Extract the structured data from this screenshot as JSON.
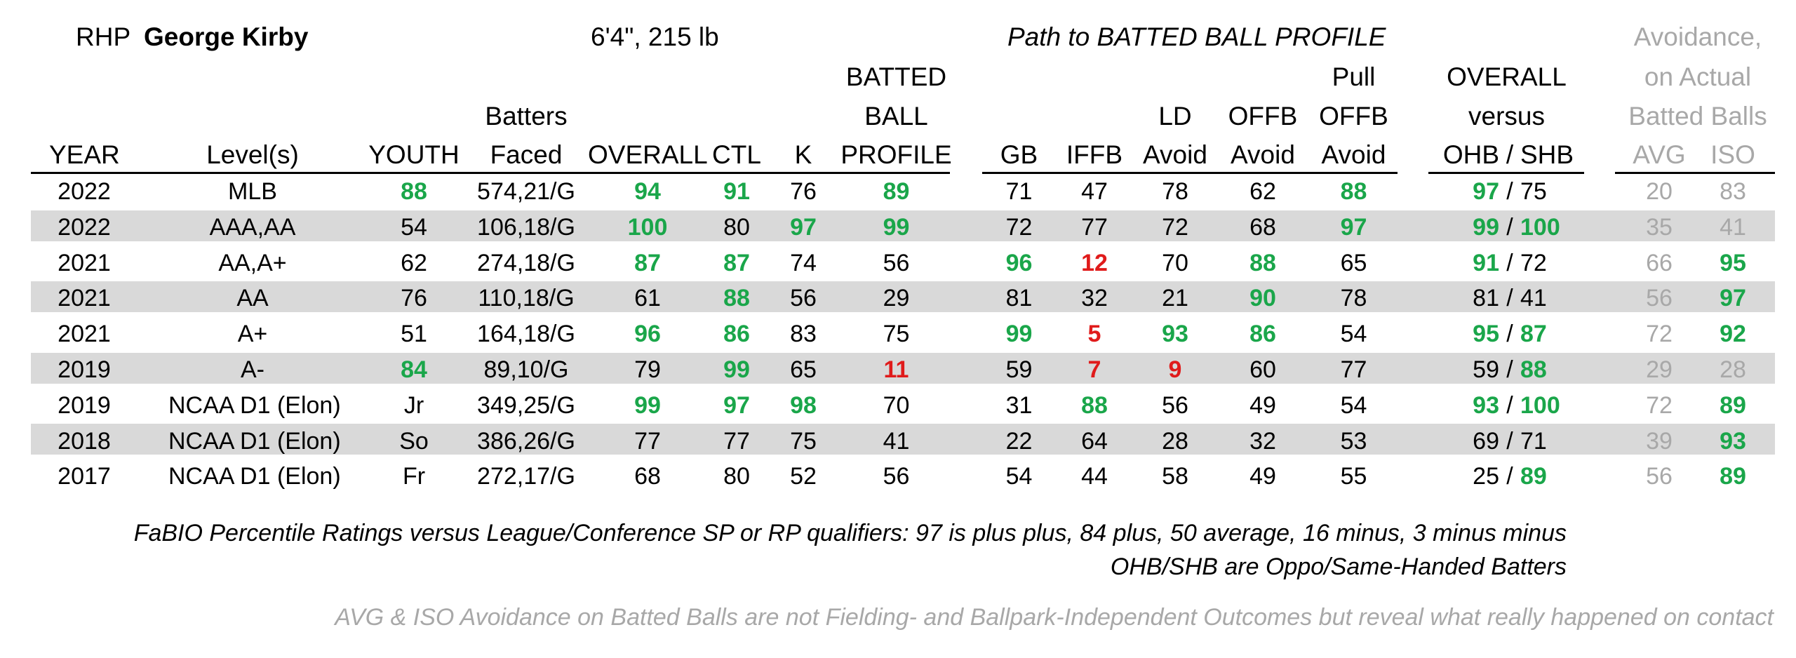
{
  "header": {
    "position": "RHP",
    "player_name": "George Kirby",
    "size": "6'4\", 215 lb",
    "path_title": "Path to BATTED BALL PROFILE",
    "avoid_title_1": "Avoidance,",
    "avoid_title_2": "on Actual",
    "avoid_title_3": "Batted Balls"
  },
  "columns": {
    "year": "YEAR",
    "levels": "Level(s)",
    "youth": "YOUTH",
    "bf_1": "Batters",
    "bf_2": "Faced",
    "overall": "OVERALL",
    "ctl": "CTL",
    "k": "K",
    "bbp_1": "BATTED",
    "bbp_2": "BALL",
    "bbp_3": "PROFILE",
    "gb": "GB",
    "iffb": "IFFB",
    "ld_1": "LD",
    "ld_2": "Avoid",
    "offb_1": "OFFB",
    "offb_2": "Avoid",
    "pull_1": "Pull",
    "pull_2": "OFFB",
    "pull_3": "Avoid",
    "ov_1": "OVERALL",
    "ov_2": "versus",
    "ohb": "OHB",
    "slash": "/",
    "shb": "SHB",
    "avg": "AVG",
    "iso": "ISO"
  },
  "colors": {
    "green": "#1aa64a",
    "red": "#e01b1b",
    "gray": "#a8a8a8",
    "band": "#d9d9d9"
  },
  "rows": [
    {
      "year": "2022",
      "level": "MLB",
      "youth": "88",
      "bf": "574,21/G",
      "overall": "94",
      "ctl": "91",
      "k": "76",
      "bbp": "89",
      "gb": "71",
      "iffb": "47",
      "ld": "78",
      "offb": "62",
      "pull": "88",
      "ohb": "97",
      "shb": "75",
      "avg": "20",
      "iso": "83"
    },
    {
      "year": "2022",
      "level": "AAA,AA",
      "youth": "54",
      "bf": "106,18/G",
      "overall": "100",
      "ctl": "80",
      "k": "97",
      "bbp": "99",
      "gb": "72",
      "iffb": "77",
      "ld": "72",
      "offb": "68",
      "pull": "97",
      "ohb": "99",
      "shb": "100",
      "avg": "35",
      "iso": "41"
    },
    {
      "year": "2021",
      "level": "AA,A+",
      "youth": "62",
      "bf": "274,18/G",
      "overall": "87",
      "ctl": "87",
      "k": "74",
      "bbp": "56",
      "gb": "96",
      "iffb": "12",
      "ld": "70",
      "offb": "88",
      "pull": "65",
      "ohb": "91",
      "shb": "72",
      "avg": "66",
      "iso": "95"
    },
    {
      "year": "2021",
      "level": "AA",
      "youth": "76",
      "bf": "110,18/G",
      "overall": "61",
      "ctl": "88",
      "k": "56",
      "bbp": "29",
      "gb": "81",
      "iffb": "32",
      "ld": "21",
      "offb": "90",
      "pull": "78",
      "ohb": "81",
      "shb": "41",
      "avg": "56",
      "iso": "97"
    },
    {
      "year": "2021",
      "level": "A+",
      "youth": "51",
      "bf": "164,18/G",
      "overall": "96",
      "ctl": "86",
      "k": "83",
      "bbp": "75",
      "gb": "99",
      "iffb": "5",
      "ld": "93",
      "offb": "86",
      "pull": "54",
      "ohb": "95",
      "shb": "87",
      "avg": "72",
      "iso": "92"
    },
    {
      "year": "2019",
      "level": "A-",
      "youth": "84",
      "bf": "89,10/G",
      "overall": "79",
      "ctl": "99",
      "k": "65",
      "bbp": "11",
      "gb": "59",
      "iffb": "7",
      "ld": "9",
      "offb": "60",
      "pull": "77",
      "ohb": "59",
      "shb": "88",
      "avg": "29",
      "iso": "28"
    },
    {
      "year": "2019",
      "level": "NCAA D1 (Elon)",
      "youth": "Jr",
      "bf": "349,25/G",
      "overall": "99",
      "ctl": "97",
      "k": "98",
      "bbp": "70",
      "gb": "31",
      "iffb": "88",
      "ld": "56",
      "offb": "49",
      "pull": "54",
      "ohb": "93",
      "shb": "100",
      "avg": "72",
      "iso": "89"
    },
    {
      "year": "2018",
      "level": "NCAA D1 (Elon)",
      "youth": "So",
      "bf": "386,26/G",
      "overall": "77",
      "ctl": "77",
      "k": "75",
      "bbp": "41",
      "gb": "22",
      "iffb": "64",
      "ld": "28",
      "offb": "32",
      "pull": "53",
      "ohb": "69",
      "shb": "71",
      "avg": "39",
      "iso": "93"
    },
    {
      "year": "2017",
      "level": "NCAA D1 (Elon)",
      "youth": "Fr",
      "bf": "272,17/G",
      "overall": "68",
      "ctl": "80",
      "k": "52",
      "bbp": "56",
      "gb": "54",
      "iffb": "44",
      "ld": "58",
      "offb": "49",
      "pull": "55",
      "ohb": "25",
      "shb": "89",
      "avg": "56",
      "iso": "89"
    }
  ],
  "footer": {
    "note_1": "FaBIO Percentile Ratings versus League/Conference SP or RP qualifiers: 97 is plus plus, 84 plus, 50 average, 16 minus, 3 minus minus",
    "note_2": "OHB/SHB are Oppo/Same-Handed Batters",
    "note_3": "AVG & ISO Avoidance on Batted Balls are not Fielding- and Ballpark-Independent Outcomes but reveal what really happened on contact"
  }
}
